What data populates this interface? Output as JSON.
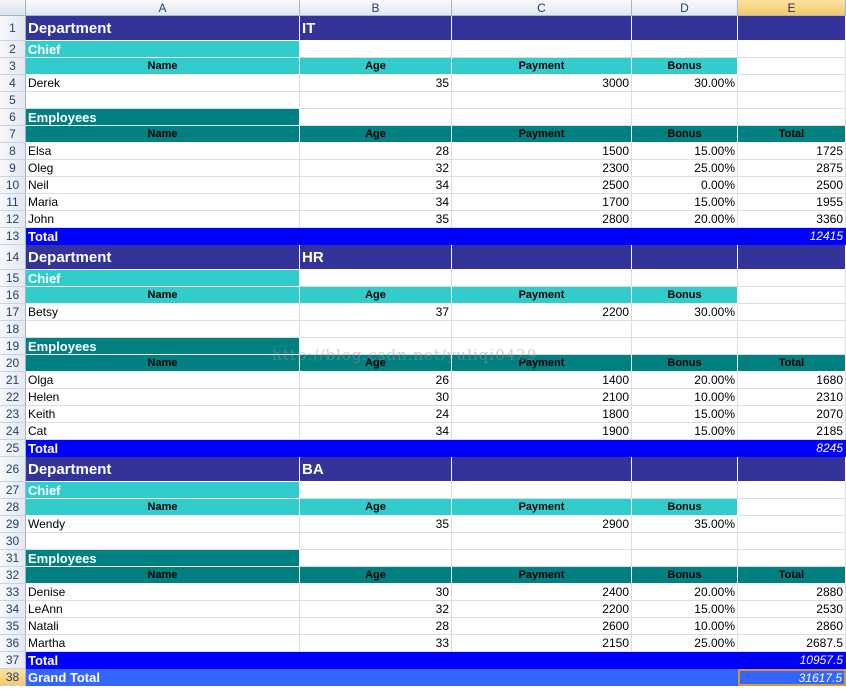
{
  "columns": [
    "A",
    "B",
    "C",
    "D",
    "E"
  ],
  "selected_column": "E",
  "selected_row": "38",
  "watermark": "http://blog.csdn.net/yuliqi0429",
  "rows": [
    {
      "n": "1",
      "style": "dept",
      "cells": [
        "Department",
        "IT",
        "",
        "",
        ""
      ]
    },
    {
      "n": "2",
      "style": "chief",
      "cells": [
        "Chief",
        "",
        "",
        "",
        ""
      ]
    },
    {
      "n": "3",
      "style": "hdr1",
      "cells": [
        "Name",
        "Age",
        "Payment",
        "Bonus",
        ""
      ]
    },
    {
      "n": "4",
      "style": "data",
      "cells": [
        "Derek",
        "35",
        "3000",
        "30.00%",
        ""
      ]
    },
    {
      "n": "5",
      "style": "blank",
      "cells": [
        "",
        "",
        "",
        "",
        ""
      ]
    },
    {
      "n": "6",
      "style": "emp",
      "cells": [
        "Employees",
        "",
        "",
        "",
        ""
      ]
    },
    {
      "n": "7",
      "style": "hdr2",
      "cells": [
        "Name",
        "Age",
        "Payment",
        "Bonus",
        "Total"
      ]
    },
    {
      "n": "8",
      "style": "data",
      "cells": [
        "Elsa",
        "28",
        "1500",
        "15.00%",
        "1725"
      ]
    },
    {
      "n": "9",
      "style": "data",
      "cells": [
        "Oleg",
        "32",
        "2300",
        "25.00%",
        "2875"
      ]
    },
    {
      "n": "10",
      "style": "data",
      "cells": [
        "Neil",
        "34",
        "2500",
        "0.00%",
        "2500"
      ]
    },
    {
      "n": "11",
      "style": "data",
      "cells": [
        "Maria",
        "34",
        "1700",
        "15.00%",
        "1955"
      ]
    },
    {
      "n": "12",
      "style": "data",
      "cells": [
        "John",
        "35",
        "2800",
        "20.00%",
        "3360"
      ]
    },
    {
      "n": "13",
      "style": "total",
      "cells": [
        "Total",
        "",
        "",
        "",
        "12415"
      ]
    },
    {
      "n": "14",
      "style": "dept",
      "cells": [
        "Department",
        "HR",
        "",
        "",
        ""
      ]
    },
    {
      "n": "15",
      "style": "chief",
      "cells": [
        "Chief",
        "",
        "",
        "",
        ""
      ]
    },
    {
      "n": "16",
      "style": "hdr1",
      "cells": [
        "Name",
        "Age",
        "Payment",
        "Bonus",
        ""
      ]
    },
    {
      "n": "17",
      "style": "data",
      "cells": [
        "Betsy",
        "37",
        "2200",
        "30.00%",
        ""
      ]
    },
    {
      "n": "18",
      "style": "blank",
      "cells": [
        "",
        "",
        "",
        "",
        ""
      ]
    },
    {
      "n": "19",
      "style": "emp",
      "cells": [
        "Employees",
        "",
        "",
        "",
        ""
      ]
    },
    {
      "n": "20",
      "style": "hdr2",
      "cells": [
        "Name",
        "Age",
        "Payment",
        "Bonus",
        "Total"
      ]
    },
    {
      "n": "21",
      "style": "data",
      "cells": [
        "Olga",
        "26",
        "1400",
        "20.00%",
        "1680"
      ]
    },
    {
      "n": "22",
      "style": "data",
      "cells": [
        "Helen",
        "30",
        "2100",
        "10.00%",
        "2310"
      ]
    },
    {
      "n": "23",
      "style": "data",
      "cells": [
        "Keith",
        "24",
        "1800",
        "15.00%",
        "2070"
      ]
    },
    {
      "n": "24",
      "style": "data",
      "cells": [
        "Cat",
        "34",
        "1900",
        "15.00%",
        "2185"
      ]
    },
    {
      "n": "25",
      "style": "total",
      "cells": [
        "Total",
        "",
        "",
        "",
        "8245"
      ]
    },
    {
      "n": "26",
      "style": "dept",
      "cells": [
        "Department",
        "BA",
        "",
        "",
        ""
      ]
    },
    {
      "n": "27",
      "style": "chief",
      "cells": [
        "Chief",
        "",
        "",
        "",
        ""
      ]
    },
    {
      "n": "28",
      "style": "hdr1",
      "cells": [
        "Name",
        "Age",
        "Payment",
        "Bonus",
        ""
      ]
    },
    {
      "n": "29",
      "style": "data",
      "cells": [
        "Wendy",
        "35",
        "2900",
        "35.00%",
        ""
      ]
    },
    {
      "n": "30",
      "style": "blank",
      "cells": [
        "",
        "",
        "",
        "",
        ""
      ]
    },
    {
      "n": "31",
      "style": "emp",
      "cells": [
        "Employees",
        "",
        "",
        "",
        ""
      ]
    },
    {
      "n": "32",
      "style": "hdr2",
      "cells": [
        "Name",
        "Age",
        "Payment",
        "Bonus",
        "Total"
      ]
    },
    {
      "n": "33",
      "style": "data",
      "cells": [
        "Denise",
        "30",
        "2400",
        "20.00%",
        "2880"
      ]
    },
    {
      "n": "34",
      "style": "data",
      "cells": [
        "LeAnn",
        "32",
        "2200",
        "15.00%",
        "2530"
      ]
    },
    {
      "n": "35",
      "style": "data",
      "cells": [
        "Natali",
        "28",
        "2600",
        "10.00%",
        "2860"
      ]
    },
    {
      "n": "36",
      "style": "data",
      "cells": [
        "Martha",
        "33",
        "2150",
        "25.00%",
        "2687.5"
      ]
    },
    {
      "n": "37",
      "style": "total",
      "cells": [
        "Total",
        "",
        "",
        "",
        "10957.5"
      ]
    },
    {
      "n": "38",
      "style": "grand",
      "cells": [
        "Grand Total",
        "",
        "",
        "",
        "31617.5"
      ]
    }
  ]
}
